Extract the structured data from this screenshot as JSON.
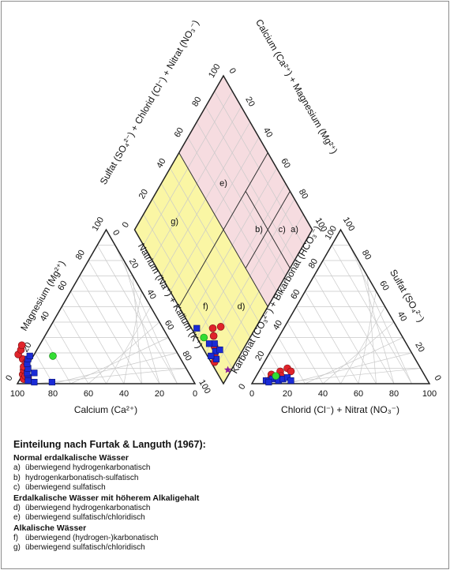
{
  "chart_data": {
    "type": "scatter",
    "title": "",
    "cation_triangle": {
      "bottom_axis_label": "Calcium (Ca²⁺)",
      "left_axis_label": "Magnesium (Mg²⁺)",
      "right_axis_label": "Natrium (Na⁺) + Kalium (K⁺)",
      "bottom_ticks": [
        "100",
        "80",
        "60",
        "40",
        "20",
        "0"
      ],
      "left_ticks": [
        "0",
        "20",
        "40",
        "60",
        "80",
        "100"
      ],
      "right_ticks": [
        "0",
        "20",
        "40",
        "60",
        "80",
        "100"
      ]
    },
    "anion_triangle": {
      "bottom_axis_label": "Chlorid (Cl⁻) + Nitrat (NO₃⁻)",
      "left_axis_label": "Karbonat (CO₃²⁻) + Bikarbonat (HCO₃⁻)",
      "right_axis_label": "Sulfat (SO₄²⁻)",
      "bottom_ticks": [
        "0",
        "20",
        "40",
        "60",
        "80",
        "100"
      ],
      "left_ticks": [
        "100",
        "80",
        "60",
        "40",
        "20",
        "0"
      ],
      "right_ticks": [
        "0",
        "20",
        "40",
        "60",
        "80",
        "100"
      ]
    },
    "diamond": {
      "upper_left_axis_label": "Sulfat (SO₄²⁻) + Chlorid (Cl⁻) + Nitrat (NO₃⁻)",
      "upper_right_axis_label": "Calcium (Ca²⁺) + Magnesium (Mg²⁺)",
      "upper_left_ticks": [
        "0",
        "20",
        "40",
        "60",
        "80",
        "100"
      ],
      "upper_right_ticks": [
        "0",
        "20",
        "40",
        "60",
        "80",
        "100"
      ],
      "regions": [
        "a)",
        "b)",
        "c)",
        "d)",
        "e)",
        "f)",
        "g)"
      ]
    },
    "colors": {
      "normal_zone": "#f6dce0",
      "alkaline_zone": "#faf6a4",
      "grid": "#c9c9c9",
      "red_circle": "#e0242b",
      "blue_square": "#1a2bd6",
      "green_circle": "#33dd33",
      "purple_star": "#8a1d9c"
    },
    "series": [
      {
        "marker": "red-circle",
        "cation": [
          [
            94,
            6
          ],
          [
            92,
            9
          ],
          [
            91,
            11
          ],
          [
            89,
            16
          ],
          [
            88,
            14
          ],
          [
            90,
            19
          ],
          [
            87,
            22
          ],
          [
            85,
            25
          ],
          [
            92,
            4
          ],
          [
            95,
            3
          ],
          [
            93,
            5
          ]
        ],
        "anion": [
          [
            8,
            6
          ],
          [
            12,
            8
          ],
          [
            15,
            10
          ],
          [
            10,
            4
          ],
          [
            18,
            8
          ],
          [
            9,
            3
          ],
          [
            14,
            5
          ]
        ],
        "diamond": [
          [
            14,
            4
          ],
          [
            17,
            7
          ],
          [
            21,
            10
          ],
          [
            20,
            17
          ],
          [
            24,
            12
          ],
          [
            12,
            2
          ]
        ]
      },
      {
        "marker": "blue-square",
        "cation": [
          [
            92,
            4
          ],
          [
            91,
            7
          ],
          [
            89,
            10
          ],
          [
            88,
            13
          ],
          [
            86,
            16
          ],
          [
            93,
            2
          ],
          [
            84,
            18
          ],
          [
            90,
            1
          ],
          [
            87,
            7
          ],
          [
            80,
            1
          ]
        ],
        "anion": [
          [
            7,
            2
          ],
          [
            10,
            3
          ],
          [
            12,
            4
          ],
          [
            9,
            1
          ],
          [
            14,
            2
          ],
          [
            16,
            3
          ],
          [
            18,
            4
          ],
          [
            21,
            2
          ]
        ],
        "diamond": [
          [
            12,
            4
          ],
          [
            15,
            6
          ],
          [
            18,
            8
          ],
          [
            21,
            5
          ],
          [
            16,
            2
          ],
          [
            13,
            9
          ],
          [
            33,
            3
          ]
        ]
      },
      {
        "marker": "green-circle",
        "cation": [
          [
            71,
            18
          ]
        ],
        "anion": [
          [
            11,
            5
          ]
        ],
        "diamond": [
          [
            26,
            4
          ]
        ]
      },
      {
        "marker": "purple-star",
        "cation": [],
        "anion": [],
        "diamond": [
          [
            2,
            7
          ]
        ]
      }
    ]
  },
  "legend": {
    "title": "Einteilung nach Furtak & Languth (1967):",
    "groups": [
      {
        "heading": "Normal erdalkalische Wässer",
        "items": [
          {
            "key": "a)",
            "text": "überwiegend hydrogenkarbonatisch"
          },
          {
            "key": "b)",
            "text": "hydrogenkarbonatisch-sulfatisch"
          },
          {
            "key": "c)",
            "text": "überwiegend sulfatisch"
          }
        ]
      },
      {
        "heading": "Erdalkalische Wässer mit höherem Alkaligehalt",
        "items": [
          {
            "key": "d)",
            "text": "überwiegend hydrogenkarbonatisch"
          },
          {
            "key": "e)",
            "text": "überwiegend sulfatisch/chloridisch"
          }
        ]
      },
      {
        "heading": "Alkalische Wässer",
        "items": [
          {
            "key": "f)",
            "text": "überwiegend (hydrogen-)karbonatisch"
          },
          {
            "key": "g)",
            "text": "überwiegend sulfatisch/chloridisch"
          }
        ]
      }
    ]
  }
}
